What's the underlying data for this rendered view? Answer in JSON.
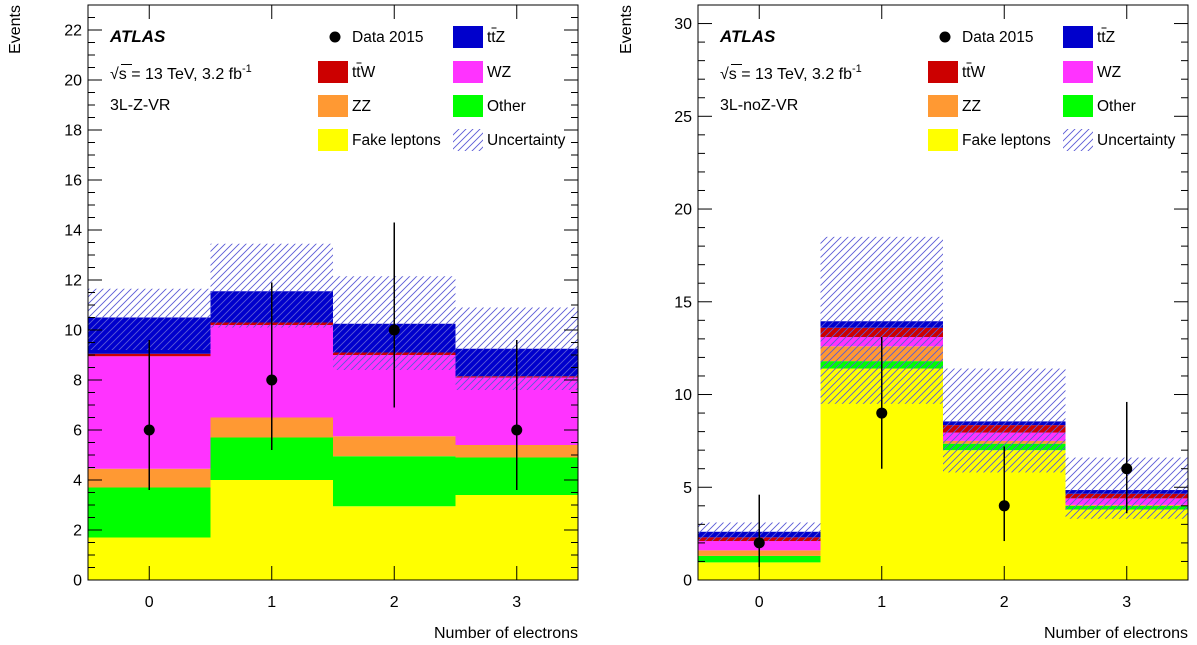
{
  "chart_data": [
    {
      "type": "bar",
      "stacked": true,
      "region_label": "3L-Z-VR",
      "experiment": "ATLAS",
      "sqrt_s": "13 TeV",
      "luminosity": "3.2 fb",
      "lumi_exponent": "-1",
      "xlabel": "Number of electrons",
      "ylabel": "Events",
      "categories": [
        "0",
        "1",
        "2",
        "3"
      ],
      "ylim": [
        0,
        23
      ],
      "y_major_ticks": [
        0,
        2,
        4,
        6,
        8,
        10,
        12,
        14,
        16,
        18,
        20,
        22
      ],
      "y_minor_step": 0.5,
      "series": [
        {
          "name": "Fake leptons",
          "color": "#ffff00",
          "values": [
            1.7,
            4.0,
            2.95,
            3.4
          ]
        },
        {
          "name": "Other",
          "color": "#00ff00",
          "values": [
            2.0,
            1.7,
            2.0,
            1.5
          ]
        },
        {
          "name": "ZZ",
          "color": "#ff9933",
          "values": [
            0.75,
            0.8,
            0.8,
            0.5
          ]
        },
        {
          "name": "WZ",
          "color": "#ff33ff",
          "values": [
            4.5,
            3.7,
            3.25,
            2.7
          ]
        },
        {
          "name": "ttW",
          "color": "#cc0000",
          "values": [
            0.1,
            0.1,
            0.1,
            0.05
          ]
        },
        {
          "name": "ttZ",
          "color": "#0000cc",
          "values": [
            1.45,
            1.25,
            1.15,
            1.1
          ]
        }
      ],
      "uncertainty_band": {
        "low": [
          9.2,
          10.1,
          8.4,
          7.6
        ],
        "high": [
          11.65,
          13.45,
          12.15,
          10.9
        ]
      },
      "data": {
        "name": "Data 2015",
        "values": [
          6,
          8,
          10,
          6
        ],
        "err_low": [
          2.4,
          2.8,
          3.1,
          2.4
        ],
        "err_high": [
          3.6,
          3.9,
          4.3,
          3.6
        ]
      },
      "legend": [
        {
          "label": "Data 2015",
          "kind": "marker"
        },
        {
          "label": "ttZ",
          "kind": "box",
          "color": "#0000cc",
          "bar_over": "t"
        },
        {
          "label": "ttW",
          "kind": "box",
          "color": "#cc0000",
          "bar_over": "t"
        },
        {
          "label": "WZ",
          "kind": "box",
          "color": "#ff33ff"
        },
        {
          "label": "ZZ",
          "kind": "box",
          "color": "#ff9933"
        },
        {
          "label": "Other",
          "kind": "box",
          "color": "#00ff00"
        },
        {
          "label": "Fake leptons",
          "kind": "box",
          "color": "#ffff00"
        },
        {
          "label": "Uncertainty",
          "kind": "hatch"
        }
      ]
    },
    {
      "type": "bar",
      "stacked": true,
      "region_label": "3L-noZ-VR",
      "experiment": "ATLAS",
      "sqrt_s": "13 TeV",
      "luminosity": "3.2 fb",
      "lumi_exponent": "-1",
      "xlabel": "Number of electrons",
      "ylabel": "Events",
      "categories": [
        "0",
        "1",
        "2",
        "3"
      ],
      "ylim": [
        0,
        31
      ],
      "y_major_ticks": [
        0,
        5,
        10,
        15,
        20,
        25,
        30
      ],
      "y_minor_step": 1,
      "series": [
        {
          "name": "Fake leptons",
          "color": "#ffff00",
          "values": [
            0.95,
            11.4,
            7.0,
            3.8
          ]
        },
        {
          "name": "Other",
          "color": "#00ff00",
          "values": [
            0.35,
            0.4,
            0.35,
            0.2
          ]
        },
        {
          "name": "ZZ",
          "color": "#ff9933",
          "values": [
            0.3,
            0.8,
            0.15,
            0.05
          ]
        },
        {
          "name": "WZ",
          "color": "#ff33ff",
          "values": [
            0.5,
            0.5,
            0.45,
            0.35
          ]
        },
        {
          "name": "ttW",
          "color": "#cc0000",
          "values": [
            0.2,
            0.5,
            0.4,
            0.25
          ]
        },
        {
          "name": "ttZ",
          "color": "#0000cc",
          "values": [
            0.3,
            0.35,
            0.2,
            0.2
          ]
        }
      ],
      "uncertainty_band": {
        "low": [
          2.1,
          9.5,
          5.8,
          3.3
        ],
        "high": [
          3.1,
          18.5,
          11.4,
          6.6
        ]
      },
      "data": {
        "name": "Data 2015",
        "values": [
          2,
          9,
          4,
          6
        ],
        "err_low": [
          1.3,
          3.0,
          1.9,
          2.4
        ],
        "err_high": [
          2.6,
          4.1,
          3.2,
          3.6
        ]
      },
      "legend": [
        {
          "label": "Data 2015",
          "kind": "marker"
        },
        {
          "label": "ttZ",
          "kind": "box",
          "color": "#0000cc",
          "bar_over": "t"
        },
        {
          "label": "ttW",
          "kind": "box",
          "color": "#cc0000",
          "bar_over": "t"
        },
        {
          "label": "WZ",
          "kind": "box",
          "color": "#ff33ff"
        },
        {
          "label": "ZZ",
          "kind": "box",
          "color": "#ff9933"
        },
        {
          "label": "Other",
          "kind": "box",
          "color": "#00ff00"
        },
        {
          "label": "Fake leptons",
          "kind": "box",
          "color": "#ffff00"
        },
        {
          "label": "Uncertainty",
          "kind": "hatch"
        }
      ]
    }
  ]
}
